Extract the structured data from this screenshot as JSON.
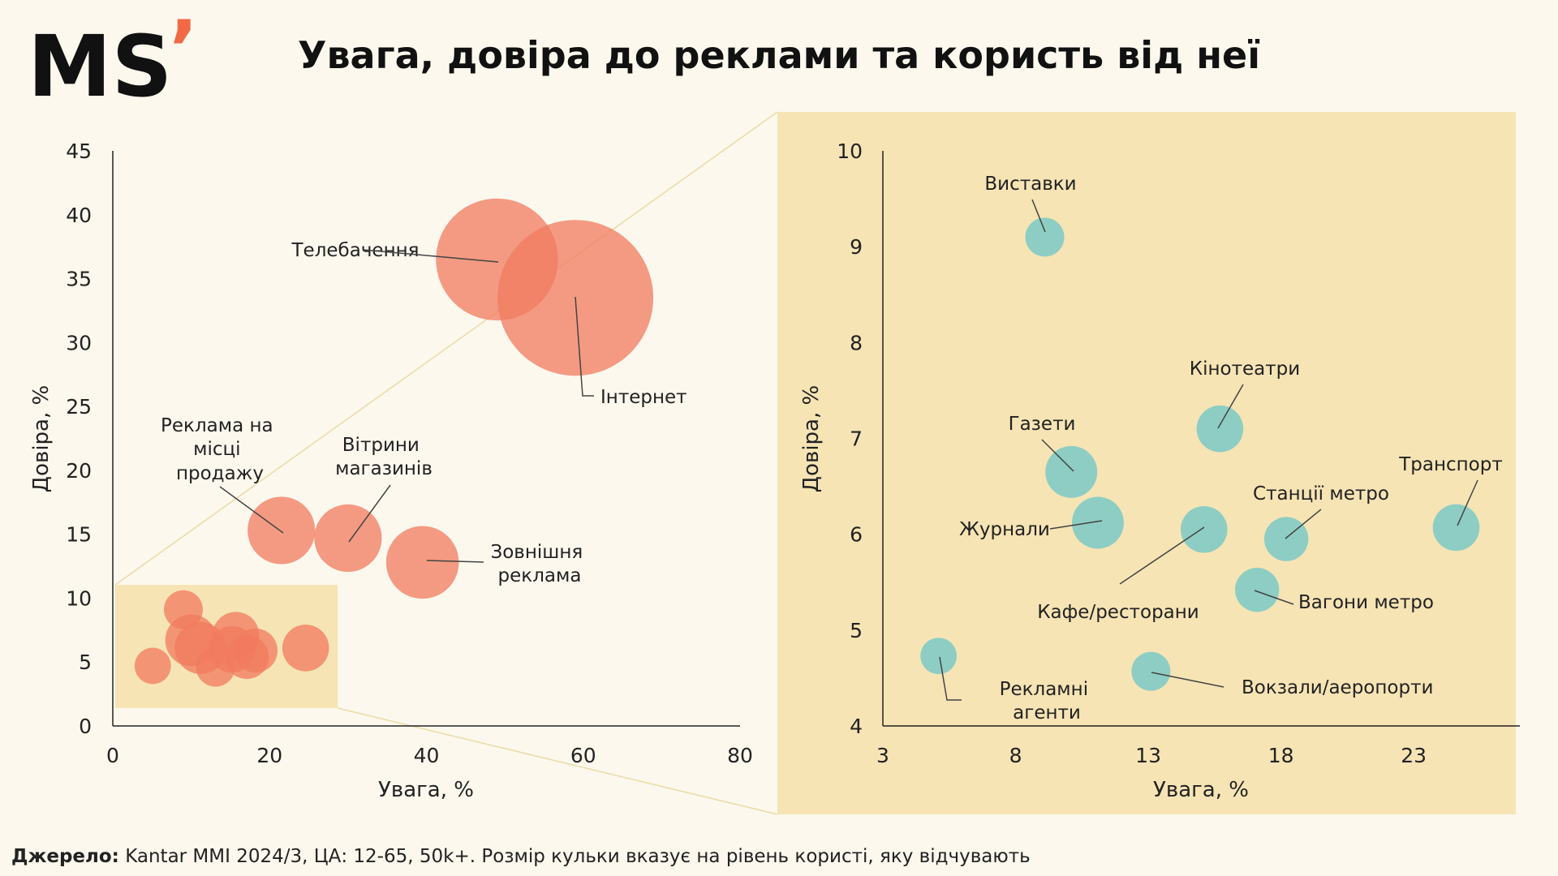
{
  "header": {
    "logo_text": "MS",
    "logo_mark": "’",
    "title": "Увага, довіра до реклами та користь від неї"
  },
  "colors": {
    "background": "#fcf8ee",
    "zoom_panel": "#f6e4b5",
    "main_bubble": "#f27b5f",
    "zoom_bubble": "#8ecdc3",
    "logo_mark": "#f26a45"
  },
  "footer": {
    "source_label": "Джерело:",
    "source_text": " Kantar MMI 2024/3, ЦА: 12-65, 50k+. Розмір кульки вказує на рівень користі, яку відчувають"
  },
  "chart_data": [
    {
      "type": "scatter",
      "bubble": true,
      "xlabel": "Увага, %",
      "ylabel": "Довіра, %",
      "xlim": [
        0,
        80
      ],
      "ylim": [
        0,
        45
      ],
      "xticks": [
        0,
        20,
        40,
        60,
        80
      ],
      "yticks": [
        0,
        5,
        10,
        15,
        20,
        25,
        30,
        35,
        40,
        45
      ],
      "grid": false,
      "points": [
        {
          "label": "Телебачення",
          "x": 49,
          "y": 36.5,
          "size": 47
        },
        {
          "label": "Інтернет",
          "x": 59,
          "y": 33.5,
          "size": 60
        },
        {
          "label": "Реклама на місці продажу",
          "x": 21.5,
          "y": 15.3,
          "size": 26
        },
        {
          "label": "Вітрини магазинів",
          "x": 30,
          "y": 14.7,
          "size": 26
        },
        {
          "label": "Зовнішня реклама",
          "x": 39.5,
          "y": 12.8,
          "size": 28
        },
        {
          "label": "",
          "x": 9,
          "y": 9.1,
          "size": 15
        },
        {
          "label": "",
          "x": 15.7,
          "y": 7.1,
          "size": 18
        },
        {
          "label": "",
          "x": 10,
          "y": 6.7,
          "size": 20
        },
        {
          "label": "",
          "x": 11.2,
          "y": 6.1,
          "size": 20
        },
        {
          "label": "",
          "x": 15.2,
          "y": 6.0,
          "size": 18
        },
        {
          "label": "",
          "x": 18.2,
          "y": 5.9,
          "size": 17
        },
        {
          "label": "",
          "x": 24.6,
          "y": 6.1,
          "size": 18
        },
        {
          "label": "",
          "x": 17.1,
          "y": 5.4,
          "size": 17
        },
        {
          "label": "",
          "x": 13.1,
          "y": 4.6,
          "size": 15
        },
        {
          "label": "",
          "x": 5.1,
          "y": 4.7,
          "size": 14
        }
      ]
    },
    {
      "type": "scatter",
      "bubble": true,
      "xlabel": "Увага, %",
      "ylabel": "Довіра, %",
      "xlim": [
        3,
        27
      ],
      "ylim": [
        4,
        10
      ],
      "xticks": [
        3,
        8,
        13,
        18,
        23
      ],
      "yticks": [
        4,
        5,
        6,
        7,
        8,
        9,
        10
      ],
      "grid": false,
      "points": [
        {
          "label": "Виставки",
          "x": 9.1,
          "y": 9.1,
          "size": 15
        },
        {
          "label": "Кінотеатри",
          "x": 15.7,
          "y": 7.1,
          "size": 18
        },
        {
          "label": "Газети",
          "x": 10.1,
          "y": 6.65,
          "size": 20
        },
        {
          "label": "Журнали",
          "x": 11.1,
          "y": 6.12,
          "size": 20
        },
        {
          "label": "Кафе/ресторани",
          "x": 15.1,
          "y": 6.05,
          "size": 18
        },
        {
          "label": "Станції метро",
          "x": 18.2,
          "y": 5.95,
          "size": 17
        },
        {
          "label": "Транспорт",
          "x": 24.6,
          "y": 6.07,
          "size": 18
        },
        {
          "label": "Вагони метро",
          "x": 17.1,
          "y": 5.42,
          "size": 17
        },
        {
          "label": "Вокзали/аеропорти",
          "x": 13.1,
          "y": 4.57,
          "size": 15
        },
        {
          "label": "Рекламні агенти",
          "x": 5.1,
          "y": 4.73,
          "size": 14
        }
      ]
    }
  ]
}
